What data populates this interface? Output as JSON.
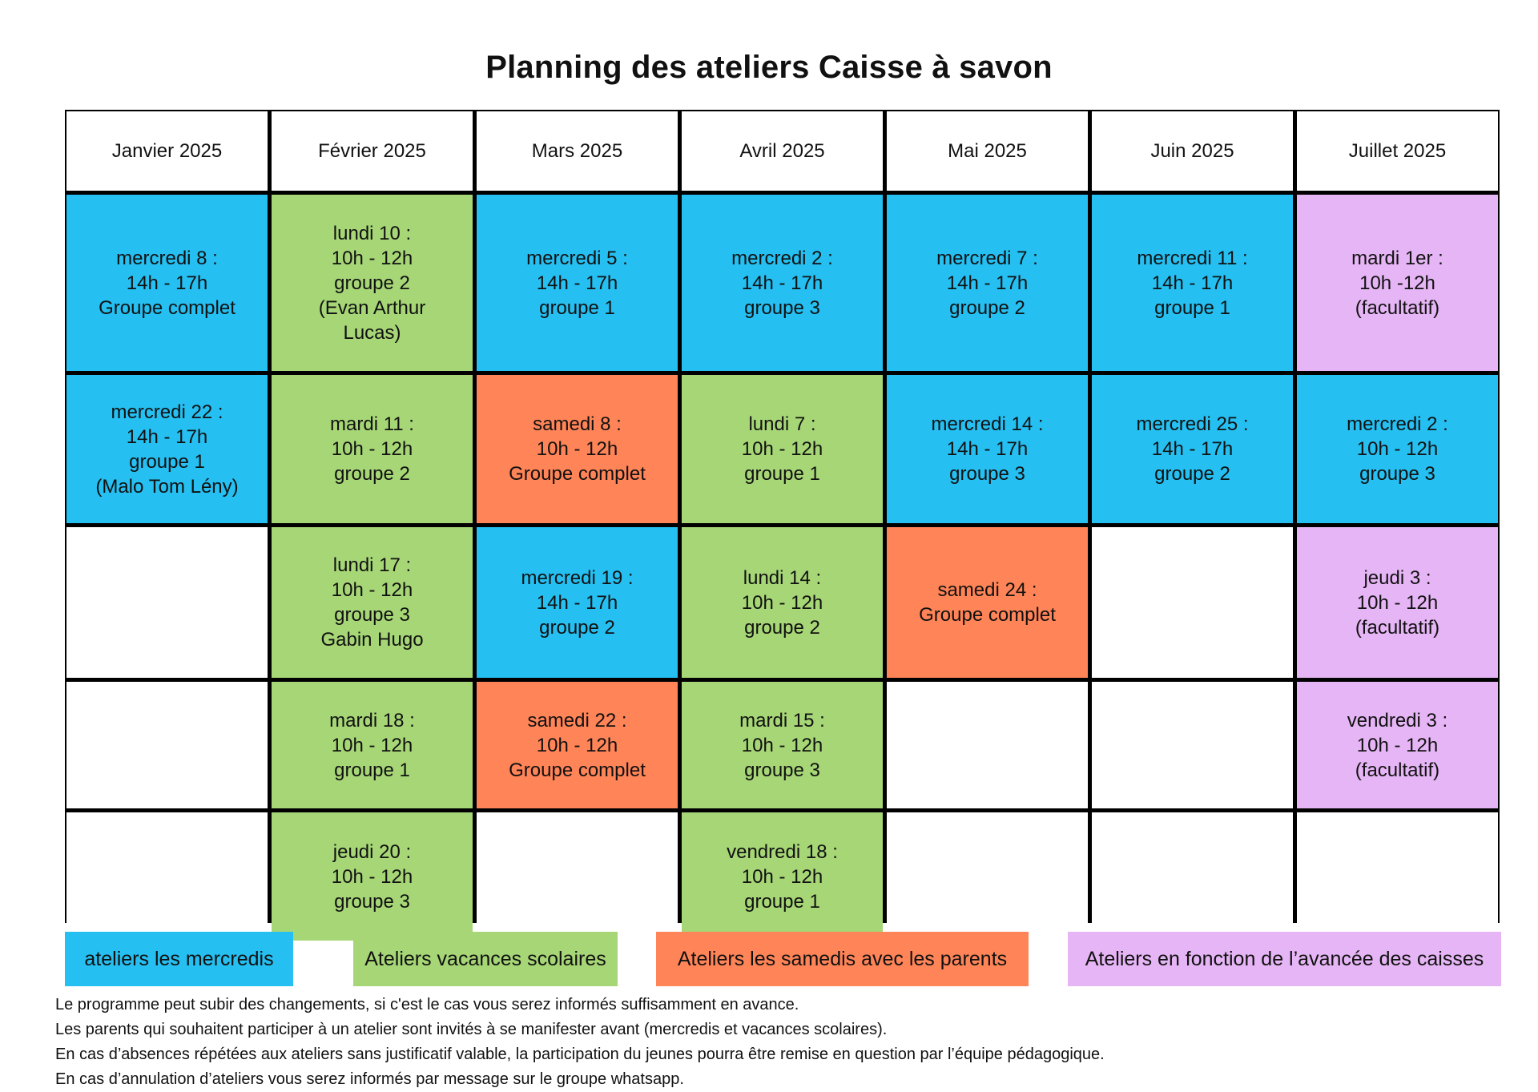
{
  "title": "Planning des ateliers Caisse à savon",
  "months": [
    "Janvier 2025",
    "Février 2025",
    "Mars 2025",
    "Avril 2025",
    "Mai 2025",
    "Juin 2025",
    "Juillet 2025"
  ],
  "colors": {
    "mercredi": "#25bff1",
    "vacances": "#a6d676",
    "samedi": "#ff8457",
    "facultatif": "#e6b5f5",
    "empty": "#ffffff"
  },
  "rows": [
    [
      {
        "text": "mercredi 8 :\n14h - 17h\nGroupe complet",
        "type": "mercredi"
      },
      {
        "text": "lundi 10 :\n10h - 12h\ngroupe 2\n(Evan Arthur\nLucas)",
        "type": "vacances"
      },
      {
        "text": "mercredi 5 :\n14h - 17h\ngroupe 1",
        "type": "mercredi"
      },
      {
        "text": "mercredi 2 :\n14h - 17h\ngroupe 3",
        "type": "mercredi"
      },
      {
        "text": "mercredi 7 :\n14h - 17h\ngroupe 2",
        "type": "mercredi"
      },
      {
        "text": "mercredi 11 :\n14h - 17h\ngroupe 1",
        "type": "mercredi"
      },
      {
        "text": "mardi 1er :\n10h -12h\n(facultatif)",
        "type": "facultatif"
      }
    ],
    [
      {
        "text": "mercredi 22 :\n14h - 17h\ngroupe 1\n(Malo Tom Lény)",
        "type": "mercredi"
      },
      {
        "text": "mardi 11 :\n10h - 12h\ngroupe 2",
        "type": "vacances"
      },
      {
        "text": "samedi 8 :\n10h - 12h\nGroupe complet",
        "type": "samedi"
      },
      {
        "text": "lundi 7 :\n10h - 12h\ngroupe 1",
        "type": "vacances"
      },
      {
        "text": "mercredi 14 :\n14h - 17h\ngroupe 3",
        "type": "mercredi"
      },
      {
        "text": "mercredi 25 :\n14h - 17h\ngroupe 2",
        "type": "mercredi"
      },
      {
        "text": "mercredi 2 :\n10h - 12h\ngroupe 3",
        "type": "mercredi"
      }
    ],
    [
      {
        "text": "",
        "type": "empty"
      },
      {
        "text": "lundi 17 :\n10h - 12h\ngroupe 3\nGabin Hugo",
        "type": "vacances"
      },
      {
        "text": "mercredi 19 :\n14h - 17h\ngroupe 2",
        "type": "mercredi"
      },
      {
        "text": "lundi 14 :\n10h - 12h\ngroupe 2",
        "type": "vacances"
      },
      {
        "text": "samedi 24 :\nGroupe complet",
        "type": "samedi"
      },
      {
        "text": "",
        "type": "empty"
      },
      {
        "text": "jeudi 3 :\n10h - 12h\n(facultatif)",
        "type": "facultatif"
      }
    ],
    [
      {
        "text": "",
        "type": "empty"
      },
      {
        "text": "mardi 18 :\n10h - 12h\ngroupe 1",
        "type": "vacances"
      },
      {
        "text": "samedi 22 :\n10h - 12h\nGroupe complet",
        "type": "samedi"
      },
      {
        "text": "mardi 15 :\n10h - 12h\ngroupe 3",
        "type": "vacances"
      },
      {
        "text": "",
        "type": "empty"
      },
      {
        "text": "",
        "type": "empty"
      },
      {
        "text": "vendredi 3 :\n10h - 12h\n(facultatif)",
        "type": "facultatif"
      }
    ],
    [
      {
        "text": "",
        "type": "empty"
      },
      {
        "text": "jeudi 20 :\n10h - 12h\ngroupe 3",
        "type": "vacances"
      },
      {
        "text": "",
        "type": "empty"
      },
      {
        "text": "vendredi 18 :\n10h - 12h\ngroupe 1",
        "type": "vacances"
      },
      {
        "text": "",
        "type": "empty"
      },
      {
        "text": "",
        "type": "empty"
      },
      {
        "text": "",
        "type": "empty"
      }
    ]
  ],
  "legend": [
    {
      "label": "ateliers les mercredis",
      "type": "mercredi"
    },
    {
      "label": "Ateliers vacances scolaires",
      "type": "vacances"
    },
    {
      "label": "Ateliers les samedis avec les parents",
      "type": "samedi"
    },
    {
      "label": "Ateliers en fonction de l’avancée des caisses",
      "type": "facultatif"
    }
  ],
  "notes": [
    "Le programme peut subir des changements, si c'est le cas vous serez informés suffisamment en avance.",
    "Les parents qui souhaitent participer à un atelier sont invités à se manifester avant (mercredis et vacances scolaires).",
    "En cas d’absences répétées aux ateliers sans justificatif valable, la participation du jeunes pourra être remise en question par l’équipe pédagogique.",
    "En cas d’annulation d’ateliers vous serez informés par message sur le groupe whatsapp."
  ]
}
